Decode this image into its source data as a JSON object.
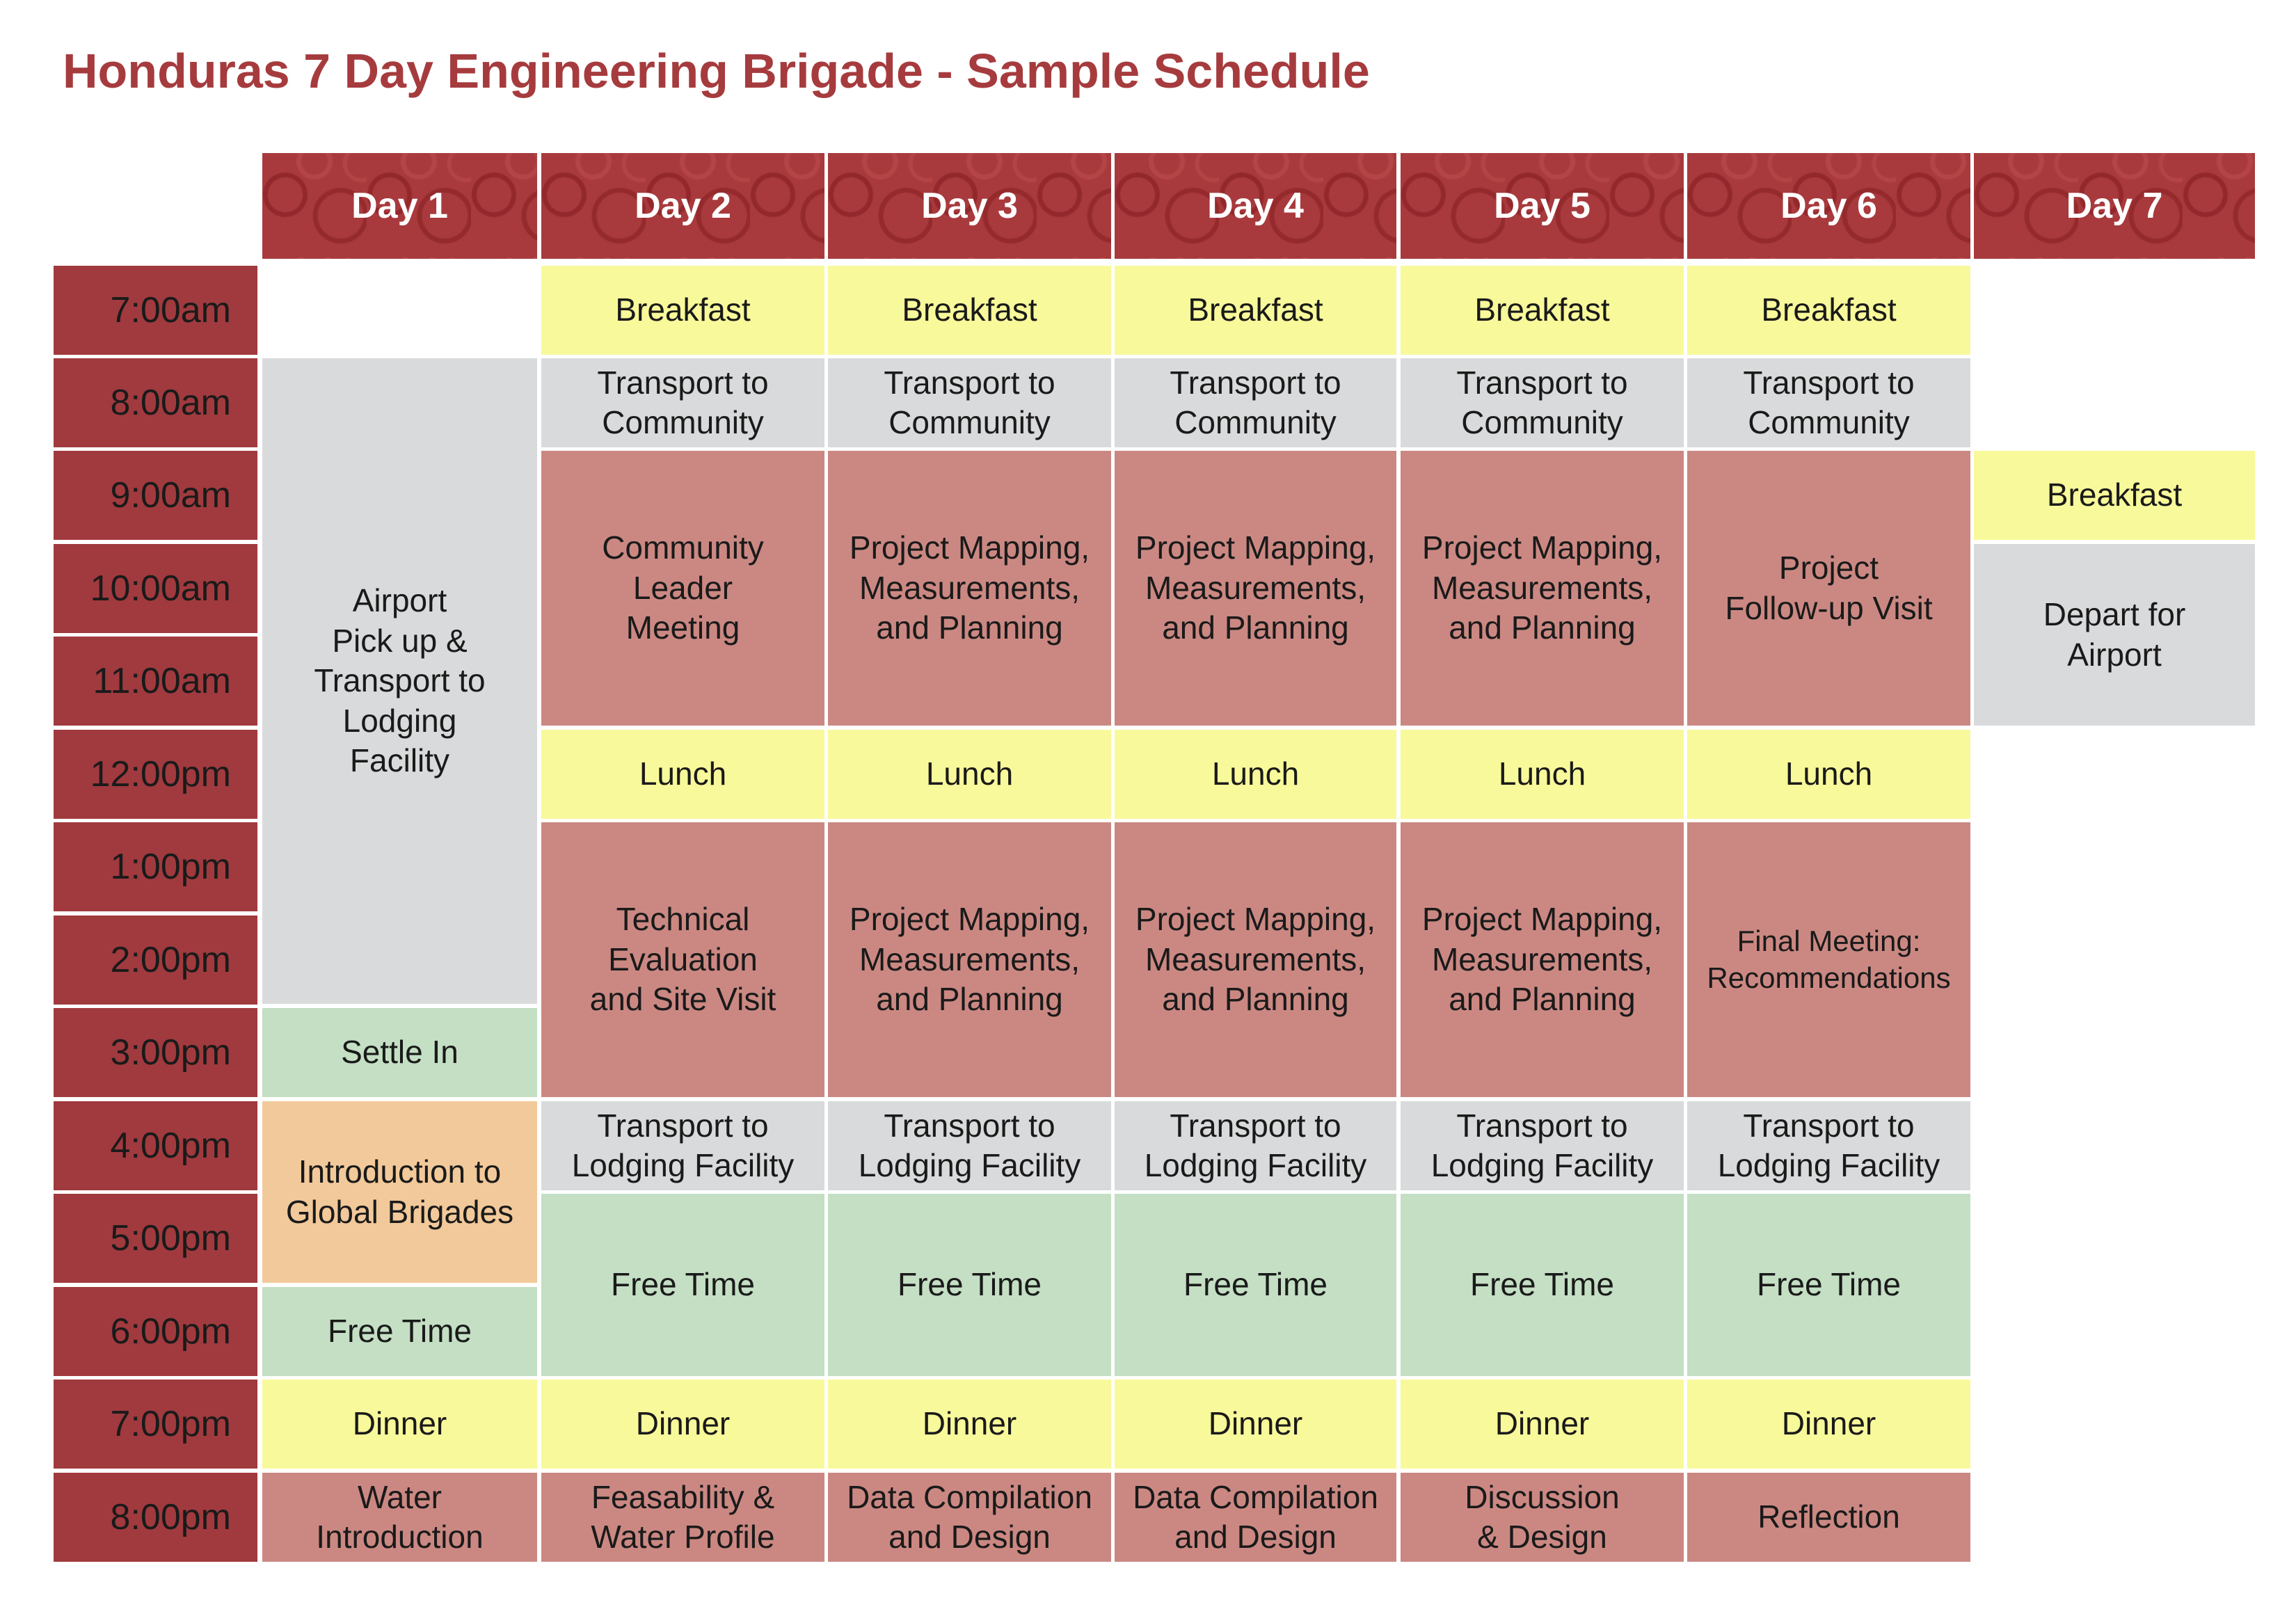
{
  "title": "Honduras 7 Day Engineering Brigade - Sample Schedule",
  "days": [
    "Day 1",
    "Day 2",
    "Day 3",
    "Day 4",
    "Day 5",
    "Day 6",
    "Day 7"
  ],
  "times": [
    "7:00am",
    "8:00am",
    "9:00am",
    "10:00am",
    "11:00am",
    "12:00pm",
    "1:00pm",
    "2:00pm",
    "3:00pm",
    "4:00pm",
    "5:00pm",
    "6:00pm",
    "7:00pm",
    "8:00pm"
  ],
  "colors": {
    "header": "#a83a3d",
    "time_column": "#a03a3e",
    "meal": "#f8f99a",
    "transport": "#d9dadb",
    "work": "#cb8882",
    "free": "#c4dfc4",
    "intro": "#f2c99a",
    "title": "#a63b3e"
  },
  "day1": {
    "airport": "Airport\nPick up &\nTransport to\nLodging\nFacility",
    "settle": "Settle In",
    "intro": "Introduction to\nGlobal Brigades",
    "free": "Free Time",
    "dinner": "Dinner",
    "evening": "Water\nIntroduction"
  },
  "day2": {
    "breakfast": "Breakfast",
    "transport_am": "Transport to\nCommunity",
    "morning": "Community\nLeader\nMeeting",
    "lunch": "Lunch",
    "afternoon": "Technical\nEvaluation\nand Site Visit",
    "transport_pm": "Transport to\nLodging Facility",
    "free": "Free Time",
    "dinner": "Dinner",
    "evening": "Feasability &\nWater Profile"
  },
  "day3": {
    "breakfast": "Breakfast",
    "transport_am": "Transport to\nCommunity",
    "morning": "Project Mapping,\nMeasurements,\nand Planning",
    "lunch": "Lunch",
    "afternoon": "Project Mapping,\nMeasurements,\nand Planning",
    "transport_pm": "Transport to\nLodging Facility",
    "free": "Free Time",
    "dinner": "Dinner",
    "evening": "Data Compilation\nand Design"
  },
  "day4": {
    "breakfast": "Breakfast",
    "transport_am": "Transport to\nCommunity",
    "morning": "Project Mapping,\nMeasurements,\nand Planning",
    "lunch": "Lunch",
    "afternoon": "Project Mapping,\nMeasurements,\nand Planning",
    "transport_pm": "Transport to\nLodging Facility",
    "free": "Free Time",
    "dinner": "Dinner",
    "evening": "Data Compilation\nand Design"
  },
  "day5": {
    "breakfast": "Breakfast",
    "transport_am": "Transport to\nCommunity",
    "morning": "Project Mapping,\nMeasurements,\nand Planning",
    "lunch": "Lunch",
    "afternoon": "Project Mapping,\nMeasurements,\nand Planning",
    "transport_pm": "Transport to\nLodging Facility",
    "free": "Free Time",
    "dinner": "Dinner",
    "evening": "Discussion\n& Design"
  },
  "day6": {
    "breakfast": "Breakfast",
    "transport_am": "Transport to\nCommunity",
    "morning": "Project\nFollow-up Visit",
    "lunch": "Lunch",
    "afternoon": "Final Meeting:\nRecommendations",
    "transport_pm": "Transport to\nLodging Facility",
    "free": "Free Time",
    "dinner": "Dinner",
    "evening": "Reflection"
  },
  "day7": {
    "breakfast": "Breakfast",
    "depart": "Depart for\nAirport"
  }
}
